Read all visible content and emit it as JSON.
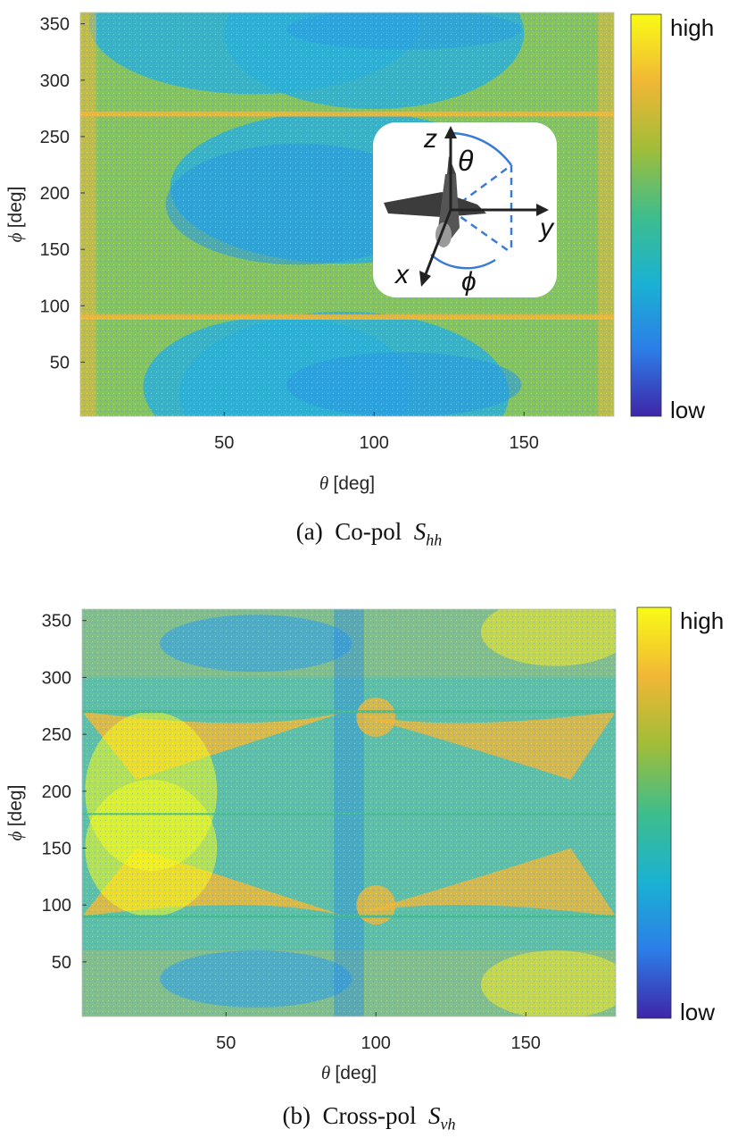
{
  "chart_data": [
    {
      "type": "heatmap",
      "panel": "a",
      "xlabel_symbol": "θ",
      "xlabel_unit": "[deg]",
      "ylabel_symbol": "ϕ",
      "ylabel_unit": "[deg]",
      "x_ticks": [
        50,
        100,
        150
      ],
      "y_ticks": [
        50,
        100,
        150,
        200,
        250,
        300,
        350
      ],
      "xlim": [
        2,
        180
      ],
      "ylim": [
        2,
        360
      ],
      "colorbar": {
        "high_label": "high",
        "low_label": "low"
      },
      "colors": [
        "#3e26a8",
        "#2c7ee8",
        "#1ab2d2",
        "#3fbd8b",
        "#a1bd38",
        "#f1b735",
        "#f9fb15"
      ],
      "caption": {
        "label": "(a)",
        "text": "Co-pol",
        "symbol": "S",
        "subscript": "hh"
      },
      "inset": {
        "axis_z": "z",
        "axis_x": "x",
        "axis_y": "y",
        "angle_theta": "θ",
        "angle_phi": "ϕ",
        "icon": "aircraft-icon"
      }
    },
    {
      "type": "heatmap",
      "panel": "b",
      "xlabel_symbol": "θ",
      "xlabel_unit": "[deg]",
      "ylabel_symbol": "ϕ",
      "ylabel_unit": "[deg]",
      "x_ticks": [
        50,
        100,
        150
      ],
      "y_ticks": [
        50,
        100,
        150,
        200,
        250,
        300,
        350
      ],
      "xlim": [
        2,
        180
      ],
      "ylim": [
        2,
        360
      ],
      "colorbar": {
        "high_label": "high",
        "low_label": "low"
      },
      "colors": [
        "#3e26a8",
        "#2c7ee8",
        "#1ab2d2",
        "#3fbd8b",
        "#a1bd38",
        "#f1b735",
        "#f9fb15"
      ],
      "caption": {
        "label": "(b)",
        "text": "Cross-pol",
        "symbol": "S",
        "subscript": "vh"
      }
    }
  ]
}
